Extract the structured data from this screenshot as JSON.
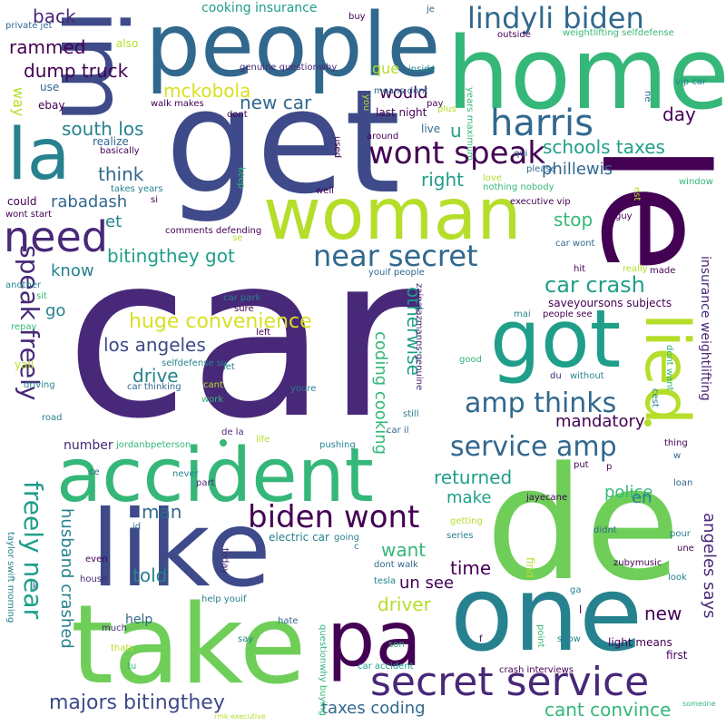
{
  "colors": {
    "purple": "#440154",
    "indigo": "#482878",
    "violet": "#3e4a89",
    "blue": "#31688e",
    "teal": "#26828e",
    "cyan": "#1f9e89",
    "green": "#35b779",
    "lime": "#6ece58",
    "yellowgreen": "#b5de2b",
    "yellow": "#d9e021"
  },
  "words": {
    "car": "car",
    "de": "de",
    "get": "get",
    "le": "le",
    "home": "home",
    "people": "people",
    "take": "take",
    "like": "like",
    "one": "one",
    "accident": "accident",
    "woman": "woman",
    "got": "got",
    "im": "im",
    "la": "la",
    "pa": "pa",
    "lied": "lied",
    "need": "need",
    "secret_service": "secret service",
    "harris": "harris",
    "lindyli_biden": "lindyli biden",
    "wont_speak": "wont speak",
    "near_secret": "near secret",
    "biden_wont": "biden wont",
    "service_amp": "service amp",
    "amp_thinks": "amp thinks",
    "speak_freely": "speak freely",
    "freely_near": "freely near",
    "car_crash": "car crash",
    "huge_convenience": "huge convenience",
    "majors_bitingthey": "majors bitingthey",
    "bitingthey_got": "bitingthey got",
    "los_angeles": "los angeles",
    "south_los": "south los",
    "dump_truck": "dump truck",
    "mckobola": "mckobola",
    "new_car": "new car",
    "husband_crashed": "husband crashed",
    "angeles_says": "angeles says",
    "cant_convince": "cant convince",
    "taxes_coding": "taxes coding",
    "coding_cooking": "coding cooking",
    "schools_taxes": "schools taxes",
    "phillewis": "phillewis",
    "mandatory": "mandatory",
    "returned": "returned",
    "otherwise": "otherwise",
    "rabadash": "rabadash",
    "rammed": "rammed",
    "back": "back",
    "would": "would",
    "right": "right",
    "think": "think",
    "day": "day",
    "stop": "stop",
    "drive": "drive",
    "know": "know",
    "told": "told",
    "want": "want",
    "man": "man",
    "new": "new",
    "make": "make",
    "time": "time",
    "un_see": "un see",
    "police": "police",
    "driver": "driver",
    "number": "number",
    "help": "help",
    "et": "et",
    "go": "go",
    "en": "en",
    "que": "que",
    "u": "u",
    "way": "way",
    "cooking_insurance": "cooking insurance",
    "insurance_weightlifting": "insurance weightlifting",
    "weightlifting_selfdefense": "weightlifting selfdefense",
    "saveyoursons_subjects": "saveyoursons subjects",
    "zainalazmanns_genuine": "zainalazmanns genuine",
    "genuine_questionwhy": "genuine questionwhy",
    "private_jet": "private jet",
    "basically": "basically",
    "realize": "realize",
    "comments_defending": "comments defending",
    "nothing_nobody": "nothing nobody",
    "executive_vip": "executive vip",
    "vip_car": "vip car",
    "car_wont": "car wont",
    "wont_start": "wont start",
    "takes_years": "takes years",
    "years_maximum": "years maximum",
    "walk_makes": "walk makes",
    "last_night": "last night",
    "means_dont": "means dont",
    "youif_people": "youif people",
    "people_see": "people see",
    "car_park": "car park",
    "car_thinking": "car thinking",
    "selfdefense_su": "selfdefense su",
    "jordanbpeterson": "jordanbpeterson",
    "de_la": "de la",
    "car_il": "car il",
    "electric_car": "electric car",
    "dont_walk": "dont walk",
    "zubymusic": "zubymusic",
    "jayecane": "jayecane",
    "light_means": "light means",
    "crash_interviews": "crash interviews",
    "car_accident": "car accident",
    "questionwhy_buying": "questionwhy buying",
    "taylor_swift_morning": "taylor swift morning",
    "rmk_executive": "rmk executive",
    "help_youif": "help youif",
    "dont_want": "dont want",
    "also": "also",
    "ebay": "ebay",
    "use": "use",
    "could": "could",
    "si": "si",
    "keep": "keep",
    "se": "se",
    "another": "another",
    "repay": "repay",
    "yall": "yall",
    "sit": "sit",
    "driving": "driving",
    "road": "road",
    "ce": "ce",
    "id": "id",
    "even": "even",
    "house": "house",
    "k": "k",
    "much": "much",
    "thats": "thats",
    "tu": "tu",
    "today": "today",
    "part": "part",
    "never": "never",
    "say": "say",
    "hate": "hate",
    "son": "son",
    "life": "life",
    "sure": "sure",
    "left": "left",
    "let": "let",
    "cant": "cant",
    "work": "work",
    "youre": "youre",
    "pushing": "pushing",
    "still": "still",
    "good": "good",
    "going": "going",
    "c": "c",
    "tesla": "tesla",
    "series": "series",
    "getting": "getting",
    "find": "find",
    "point": "point",
    "f": "f",
    "ga": "ga",
    "l": "l",
    "show": "show",
    "first": "first",
    "look": "look",
    "une": "une",
    "pour": "pour",
    "didnt": "didnt",
    "loan": "loan",
    "w": "w",
    "thing": "thing",
    "cest": "cest",
    "du": "du",
    "without": "without",
    "mai": "mai",
    "hit": "hit",
    "really": "really",
    "made": "made",
    "guy": "guy",
    "window": "window",
    "est": "est",
    "please": "please",
    "qui": "qui",
    "ne": "ne",
    "pay": "pay",
    "live": "live",
    "around": "around",
    "used": "used",
    "well": "well",
    "love": "love",
    "plus": "plus",
    "dont": "dont",
    "you": "you",
    "je": "je",
    "buy": "buy",
    "inside": "inside",
    "outside": "outside",
    "someone": "someone",
    "put": "put",
    "p": "p",
    "bitingthey": "bitingthey"
  }
}
